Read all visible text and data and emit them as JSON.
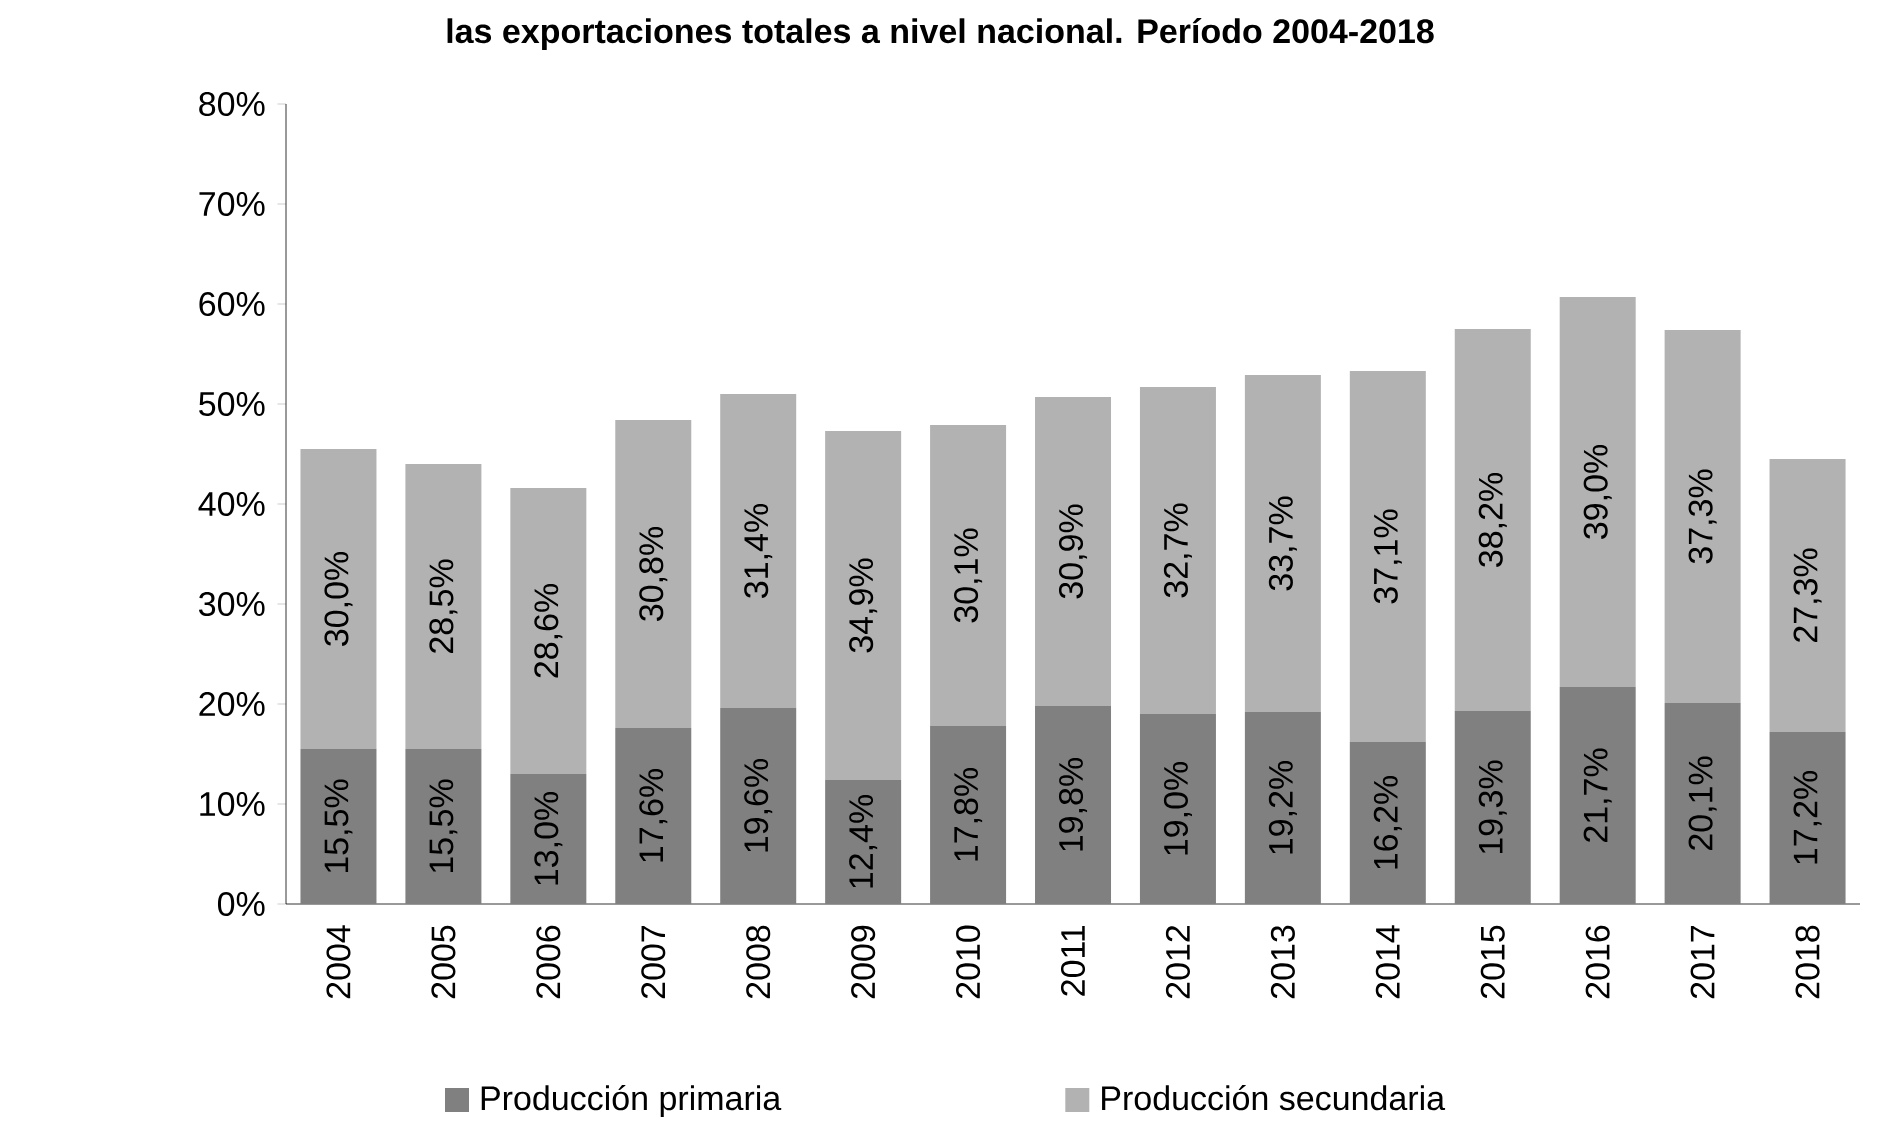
{
  "chart_data": {
    "type": "bar",
    "stacked": true,
    "title": "las exportaciones totales a nivel nacional. Período 2004-2018",
    "categories": [
      "2004",
      "2005",
      "2006",
      "2007",
      "2008",
      "2009",
      "2010",
      "2011",
      "2012",
      "2013",
      "2014",
      "2015",
      "2016",
      "2017",
      "2018"
    ],
    "series": [
      {
        "name": "Producción primaria",
        "color": "#808080",
        "values": [
          15.5,
          15.5,
          13.0,
          17.6,
          19.6,
          12.4,
          17.8,
          19.8,
          19.0,
          19.2,
          16.2,
          19.3,
          21.7,
          20.1,
          17.2
        ],
        "value_labels": [
          "15,5%",
          "15,5%",
          "13,0%",
          "17,6%",
          "19,6%",
          "12,4%",
          "17,8%",
          "19,8%",
          "19,0%",
          "19,2%",
          "16,2%",
          "19,3%",
          "21,7%",
          "20,1%",
          "17,2%"
        ]
      },
      {
        "name": "Producción secundaria",
        "color": "#b2b2b2",
        "values": [
          30.0,
          28.5,
          28.6,
          30.8,
          31.4,
          34.9,
          30.1,
          30.9,
          32.7,
          33.7,
          37.1,
          38.2,
          39.0,
          37.3,
          27.3
        ],
        "value_labels": [
          "30,0%",
          "28,5%",
          "28,6%",
          "30,8%",
          "31,4%",
          "34,9%",
          "30,1%",
          "30,9%",
          "32,7%",
          "33,7%",
          "37,1%",
          "38,2%",
          "39,0%",
          "37,3%",
          "27,3%"
        ]
      }
    ],
    "ylim": [
      0,
      80
    ],
    "yticks": [
      {
        "value": 0,
        "label": "0%"
      },
      {
        "value": 10,
        "label": "10%"
      },
      {
        "value": 20,
        "label": "20%"
      },
      {
        "value": 30,
        "label": "30%"
      },
      {
        "value": 40,
        "label": "40%"
      },
      {
        "value": 50,
        "label": "50%"
      },
      {
        "value": 60,
        "label": "60%"
      },
      {
        "value": 70,
        "label": "70%"
      },
      {
        "value": 80,
        "label": "80%"
      }
    ],
    "grid": false,
    "legend": "bottom"
  }
}
